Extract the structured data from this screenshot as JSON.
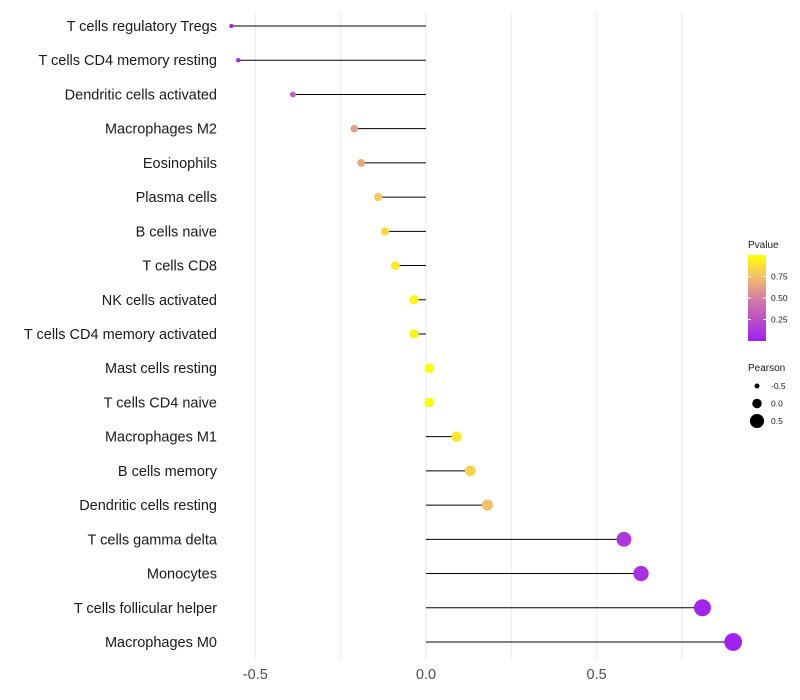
{
  "chart_data": {
    "type": "lollipop",
    "orientation": "horizontal",
    "title": "",
    "xlabel": "",
    "ylabel": "",
    "xlim": [
      -0.58,
      0.92
    ],
    "x_ticks": [
      -0.5,
      0.0,
      0.5
    ],
    "x_tick_labels": [
      "-0.5",
      "0.0",
      "0.5"
    ],
    "grid": true,
    "categories": [
      "T cells regulatory  Tregs",
      "T cells CD4 memory resting",
      "Dendritic cells activated",
      "Macrophages M2",
      "Eosinophils",
      "Plasma cells",
      "B cells naive",
      "T cells CD8",
      "NK cells activated",
      "T cells CD4 memory activated",
      "Mast cells resting",
      "T cells CD4 naive",
      "Macrophages M1",
      "B cells memory",
      "Dendritic cells resting",
      "T cells gamma delta",
      "Monocytes",
      "T cells follicular helper",
      "Macrophages M0"
    ],
    "pearson": [
      -0.57,
      -0.55,
      -0.39,
      -0.21,
      -0.19,
      -0.14,
      -0.12,
      -0.09,
      -0.035,
      -0.035,
      0.01,
      0.01,
      0.09,
      0.13,
      0.18,
      0.58,
      0.63,
      0.81,
      0.9
    ],
    "pvalue": [
      0.03,
      0.05,
      0.35,
      0.62,
      0.66,
      0.78,
      0.85,
      0.92,
      0.96,
      0.95,
      1.0,
      1.0,
      0.9,
      0.82,
      0.75,
      0.12,
      0.08,
      0.02,
      0.005
    ],
    "legend_pvalue": {
      "title": "Pvalue",
      "range": [
        0.0,
        1.0
      ],
      "ticks": [
        0.25,
        0.5,
        0.75
      ],
      "tick_labels": [
        "0.25",
        "0.50",
        "0.75"
      ],
      "color_low": "#A020F0",
      "color_high": "#FFFF00",
      "placement": "right"
    },
    "legend_pearson": {
      "title": "Pearson",
      "values": [
        -0.5,
        0.0,
        0.5
      ],
      "labels": [
        "-0.5",
        "0.0",
        "0.5"
      ],
      "placement": "right"
    }
  }
}
